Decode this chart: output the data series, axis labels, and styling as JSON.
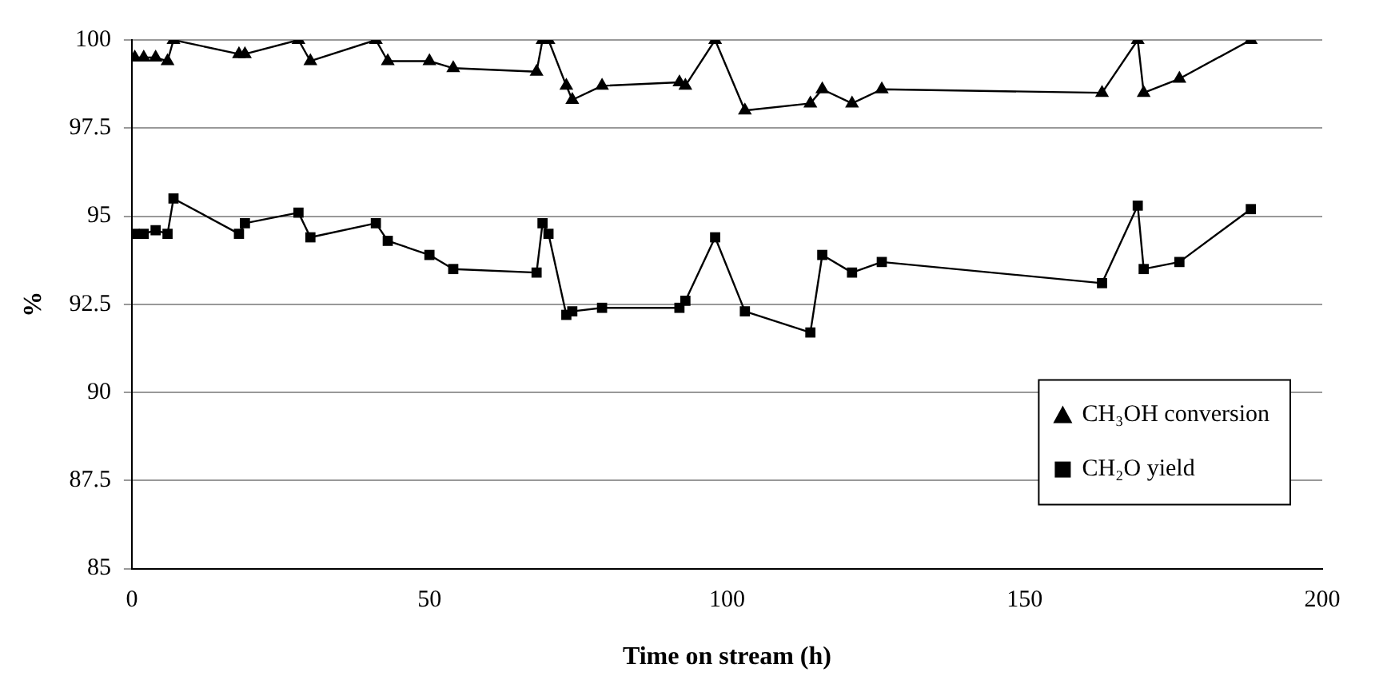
{
  "chart_data": {
    "type": "line",
    "xlabel": "Time on stream (h)",
    "ylabel": "%",
    "x": [
      0.5,
      2,
      4,
      6,
      7,
      18,
      19,
      28,
      30,
      41,
      43,
      50,
      54,
      68,
      69,
      70,
      73,
      74,
      79,
      92,
      93,
      98,
      103,
      114,
      116,
      121,
      126,
      163,
      169,
      170,
      176,
      188
    ],
    "series": [
      {
        "name": "CH₃OH conversion",
        "color": "#000000",
        "marker": "triangle",
        "values": [
          99.5,
          99.5,
          99.5,
          99.4,
          100,
          99.6,
          99.6,
          100,
          99.4,
          100,
          99.4,
          99.4,
          99.2,
          99.1,
          100,
          100,
          98.7,
          98.3,
          98.7,
          98.8,
          98.7,
          100,
          98.0,
          98.2,
          98.6,
          98.2,
          98.6,
          98.5,
          100,
          98.5,
          98.9,
          100
        ]
      },
      {
        "name": "CH₂O yield",
        "color": "#000000",
        "marker": "square",
        "values": [
          94.5,
          94.5,
          94.6,
          94.5,
          95.5,
          94.5,
          94.8,
          95.1,
          94.4,
          94.8,
          94.3,
          93.9,
          93.5,
          93.4,
          94.8,
          94.5,
          92.2,
          92.3,
          92.4,
          92.4,
          92.6,
          94.4,
          92.3,
          91.7,
          93.9,
          93.4,
          93.7,
          93.1,
          95.3,
          93.5,
          93.7,
          95.2
        ]
      }
    ],
    "xlim": [
      0,
      200
    ],
    "xticks": [
      0,
      50,
      100,
      150,
      200
    ],
    "ylim": [
      85,
      100
    ],
    "yticks": [
      85,
      87.5,
      90,
      92.5,
      95,
      97.5,
      100
    ],
    "grid": "y",
    "legend": "bottom right",
    "line_style": "solid"
  }
}
